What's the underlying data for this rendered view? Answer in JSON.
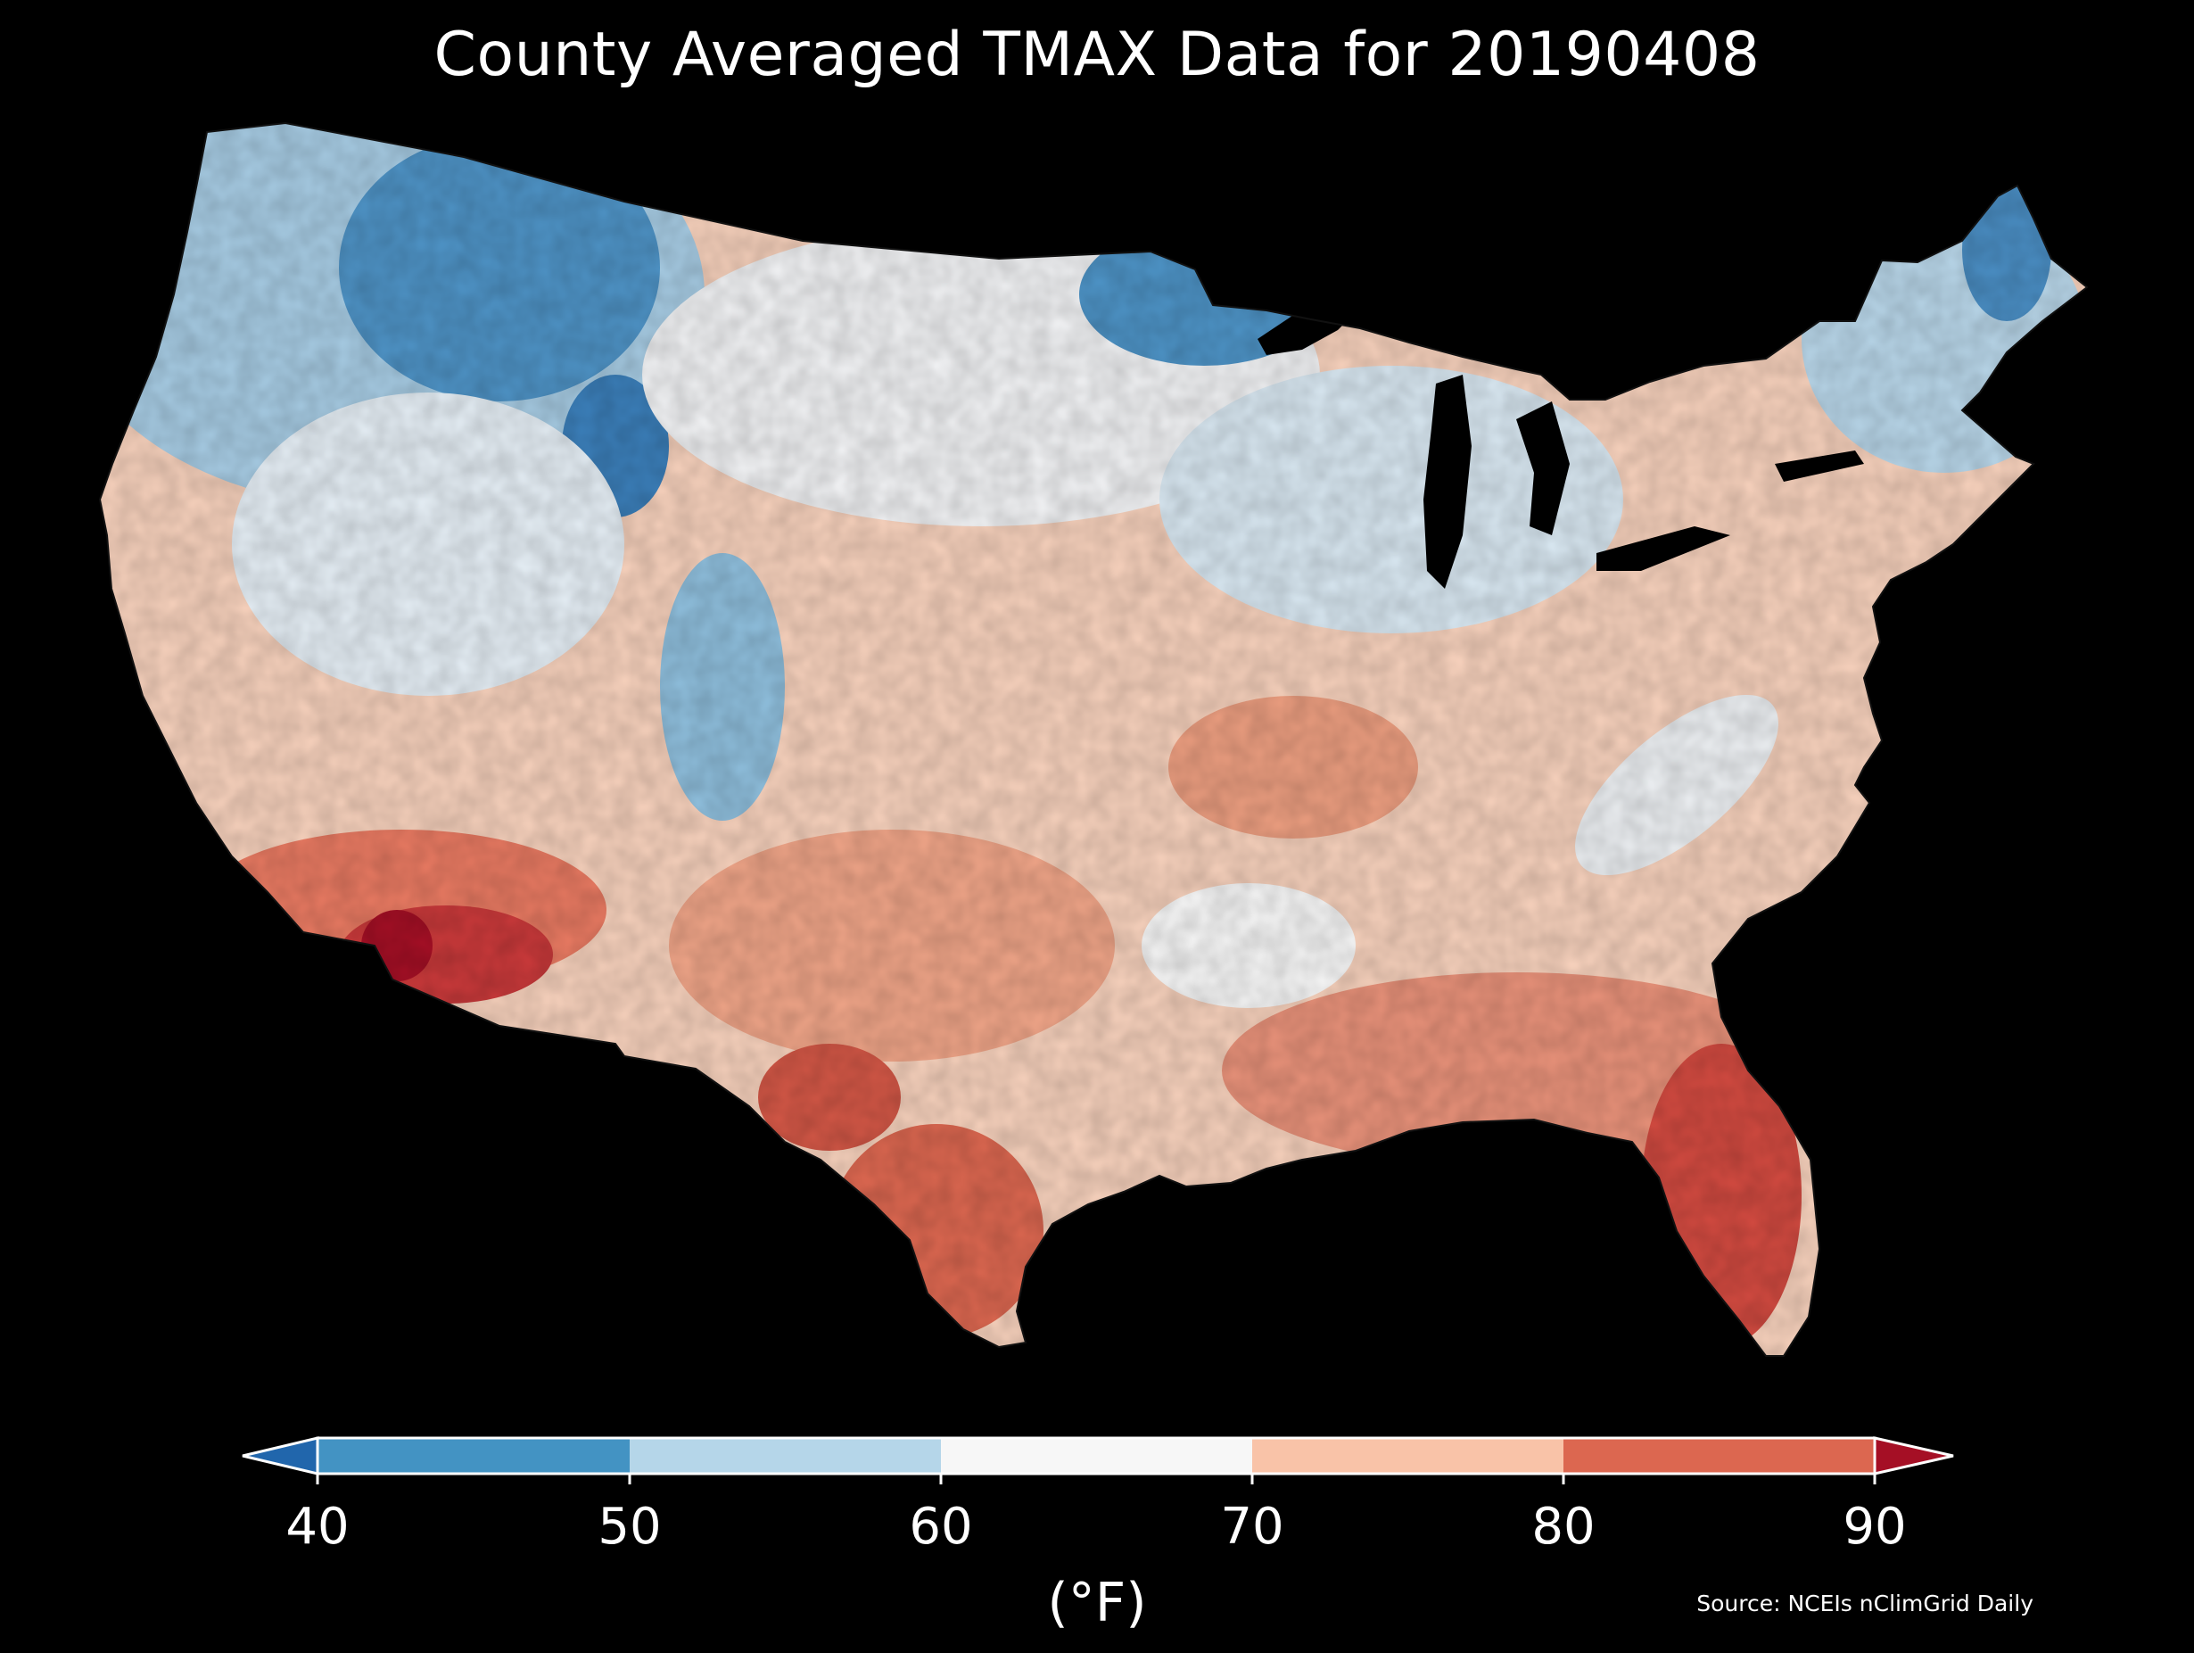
{
  "title": "County Averaged TMAX Data for 20190408",
  "source": "Source: NCEIs nClimGrid Daily",
  "colorbar": {
    "unit": "(°F)",
    "ticks": [
      "40",
      "50",
      "60",
      "70",
      "80",
      "90"
    ],
    "colors": {
      "under": "#2166ac",
      "bins": [
        "#4393c3",
        "#b5d6e9",
        "#f7f7f7",
        "#f9c3a8",
        "#dc6750"
      ],
      "over": "#a50f25"
    }
  },
  "map": {
    "region": "contiguous-united-states",
    "variable": "TMAX",
    "date": "20190408",
    "palette": {
      "cold": "#3f84bd",
      "cool": "#b5d6e9",
      "neutral": "#f7f7f7",
      "warm": "#f9c3a8",
      "hot": "#dc6750",
      "hottest": "#a50f25",
      "county_border": "#222222",
      "water": "#000000"
    }
  }
}
